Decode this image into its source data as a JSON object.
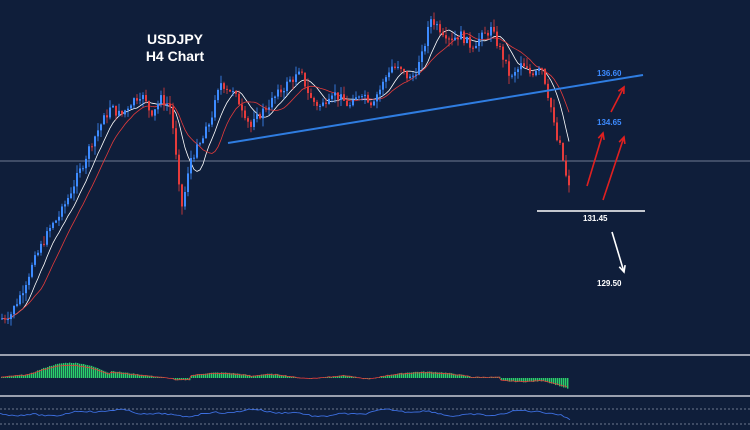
{
  "chart_data": {
    "type": "candlestick",
    "title": "USDJPY",
    "subtitle": "H4 Chart",
    "timeframe": "H4",
    "symbol": "USDJPY",
    "y_range_approx": [
      128.5,
      138.5
    ],
    "grid": false,
    "legend": "none",
    "colors": {
      "background": "#0f1e3a",
      "bull_candle": "#3d8bff",
      "bear_candle": "#e53b3b",
      "trendline": "#2f7de1",
      "arrow_up": "#e02020",
      "arrow_down": "#ffffff",
      "histogram": "#2bd16b",
      "separator": "#c8ccd6"
    },
    "price_path": [
      [
        0,
        128.8
      ],
      [
        10,
        129.0
      ],
      [
        20,
        129.7
      ],
      [
        30,
        130.6
      ],
      [
        40,
        131.4
      ],
      [
        50,
        132.1
      ],
      [
        60,
        132.6
      ],
      [
        70,
        133.4
      ],
      [
        80,
        134.2
      ],
      [
        90,
        135.1
      ],
      [
        100,
        135.8
      ],
      [
        110,
        136.4
      ],
      [
        120,
        136.1
      ],
      [
        130,
        136.6
      ],
      [
        140,
        136.9
      ],
      [
        150,
        136.2
      ],
      [
        160,
        136.7
      ],
      [
        170,
        136.4
      ],
      [
        175,
        134.6
      ],
      [
        180,
        132.7
      ],
      [
        185,
        133.5
      ],
      [
        190,
        134.6
      ],
      [
        200,
        135.1
      ],
      [
        210,
        136.0
      ],
      [
        220,
        137.3
      ],
      [
        230,
        137.0
      ],
      [
        240,
        136.5
      ],
      [
        250,
        135.7
      ],
      [
        260,
        136.2
      ],
      [
        270,
        136.6
      ],
      [
        280,
        137.0
      ],
      [
        290,
        137.4
      ],
      [
        300,
        137.6
      ],
      [
        310,
        136.7
      ],
      [
        320,
        136.4
      ],
      [
        330,
        137.0
      ],
      [
        340,
        136.7
      ],
      [
        350,
        136.4
      ],
      [
        360,
        137.0
      ],
      [
        370,
        136.6
      ],
      [
        380,
        137.1
      ],
      [
        390,
        137.9
      ],
      [
        400,
        137.7
      ],
      [
        410,
        137.4
      ],
      [
        420,
        138.1
      ],
      [
        430,
        139.6
      ],
      [
        440,
        139.2
      ],
      [
        450,
        138.9
      ],
      [
        460,
        139.0
      ],
      [
        470,
        138.6
      ],
      [
        480,
        138.9
      ],
      [
        490,
        139.2
      ],
      [
        500,
        138.4
      ],
      [
        510,
        137.4
      ],
      [
        520,
        137.9
      ],
      [
        530,
        137.6
      ],
      [
        540,
        138.0
      ],
      [
        545,
        137.2
      ],
      [
        550,
        136.4
      ],
      [
        555,
        135.3
      ],
      [
        560,
        134.9
      ],
      [
        565,
        133.9
      ],
      [
        568,
        133.5
      ]
    ],
    "trendline": {
      "start": [
        228,
        135.4
      ],
      "end": [
        643,
        137.9
      ]
    },
    "support_line": {
      "level": "131.45",
      "x_range": [
        537,
        645
      ]
    },
    "levels": [
      {
        "label": "136.60",
        "color": "#3d8bff"
      },
      {
        "label": "134.65",
        "color": "#3d8bff"
      },
      {
        "label": "131.45",
        "color": "#ffffff"
      },
      {
        "label": "129.50",
        "color": "#ffffff"
      }
    ],
    "arrows": [
      {
        "direction": "up",
        "color": "#e02020",
        "from": [
          587,
          186
        ],
        "to": [
          603,
          133
        ]
      },
      {
        "direction": "up",
        "color": "#e02020",
        "from": [
          603,
          200
        ],
        "to": [
          624,
          137
        ]
      },
      {
        "direction": "up",
        "color": "#e02020",
        "from": [
          611,
          112
        ],
        "to": [
          624,
          87
        ]
      },
      {
        "direction": "down",
        "color": "#ffffff",
        "from": [
          612,
          232
        ],
        "to": [
          624,
          272
        ]
      }
    ],
    "indicator_panels": [
      {
        "type": "histogram",
        "name": ""
      },
      {
        "type": "oscillator",
        "name": ""
      }
    ]
  }
}
